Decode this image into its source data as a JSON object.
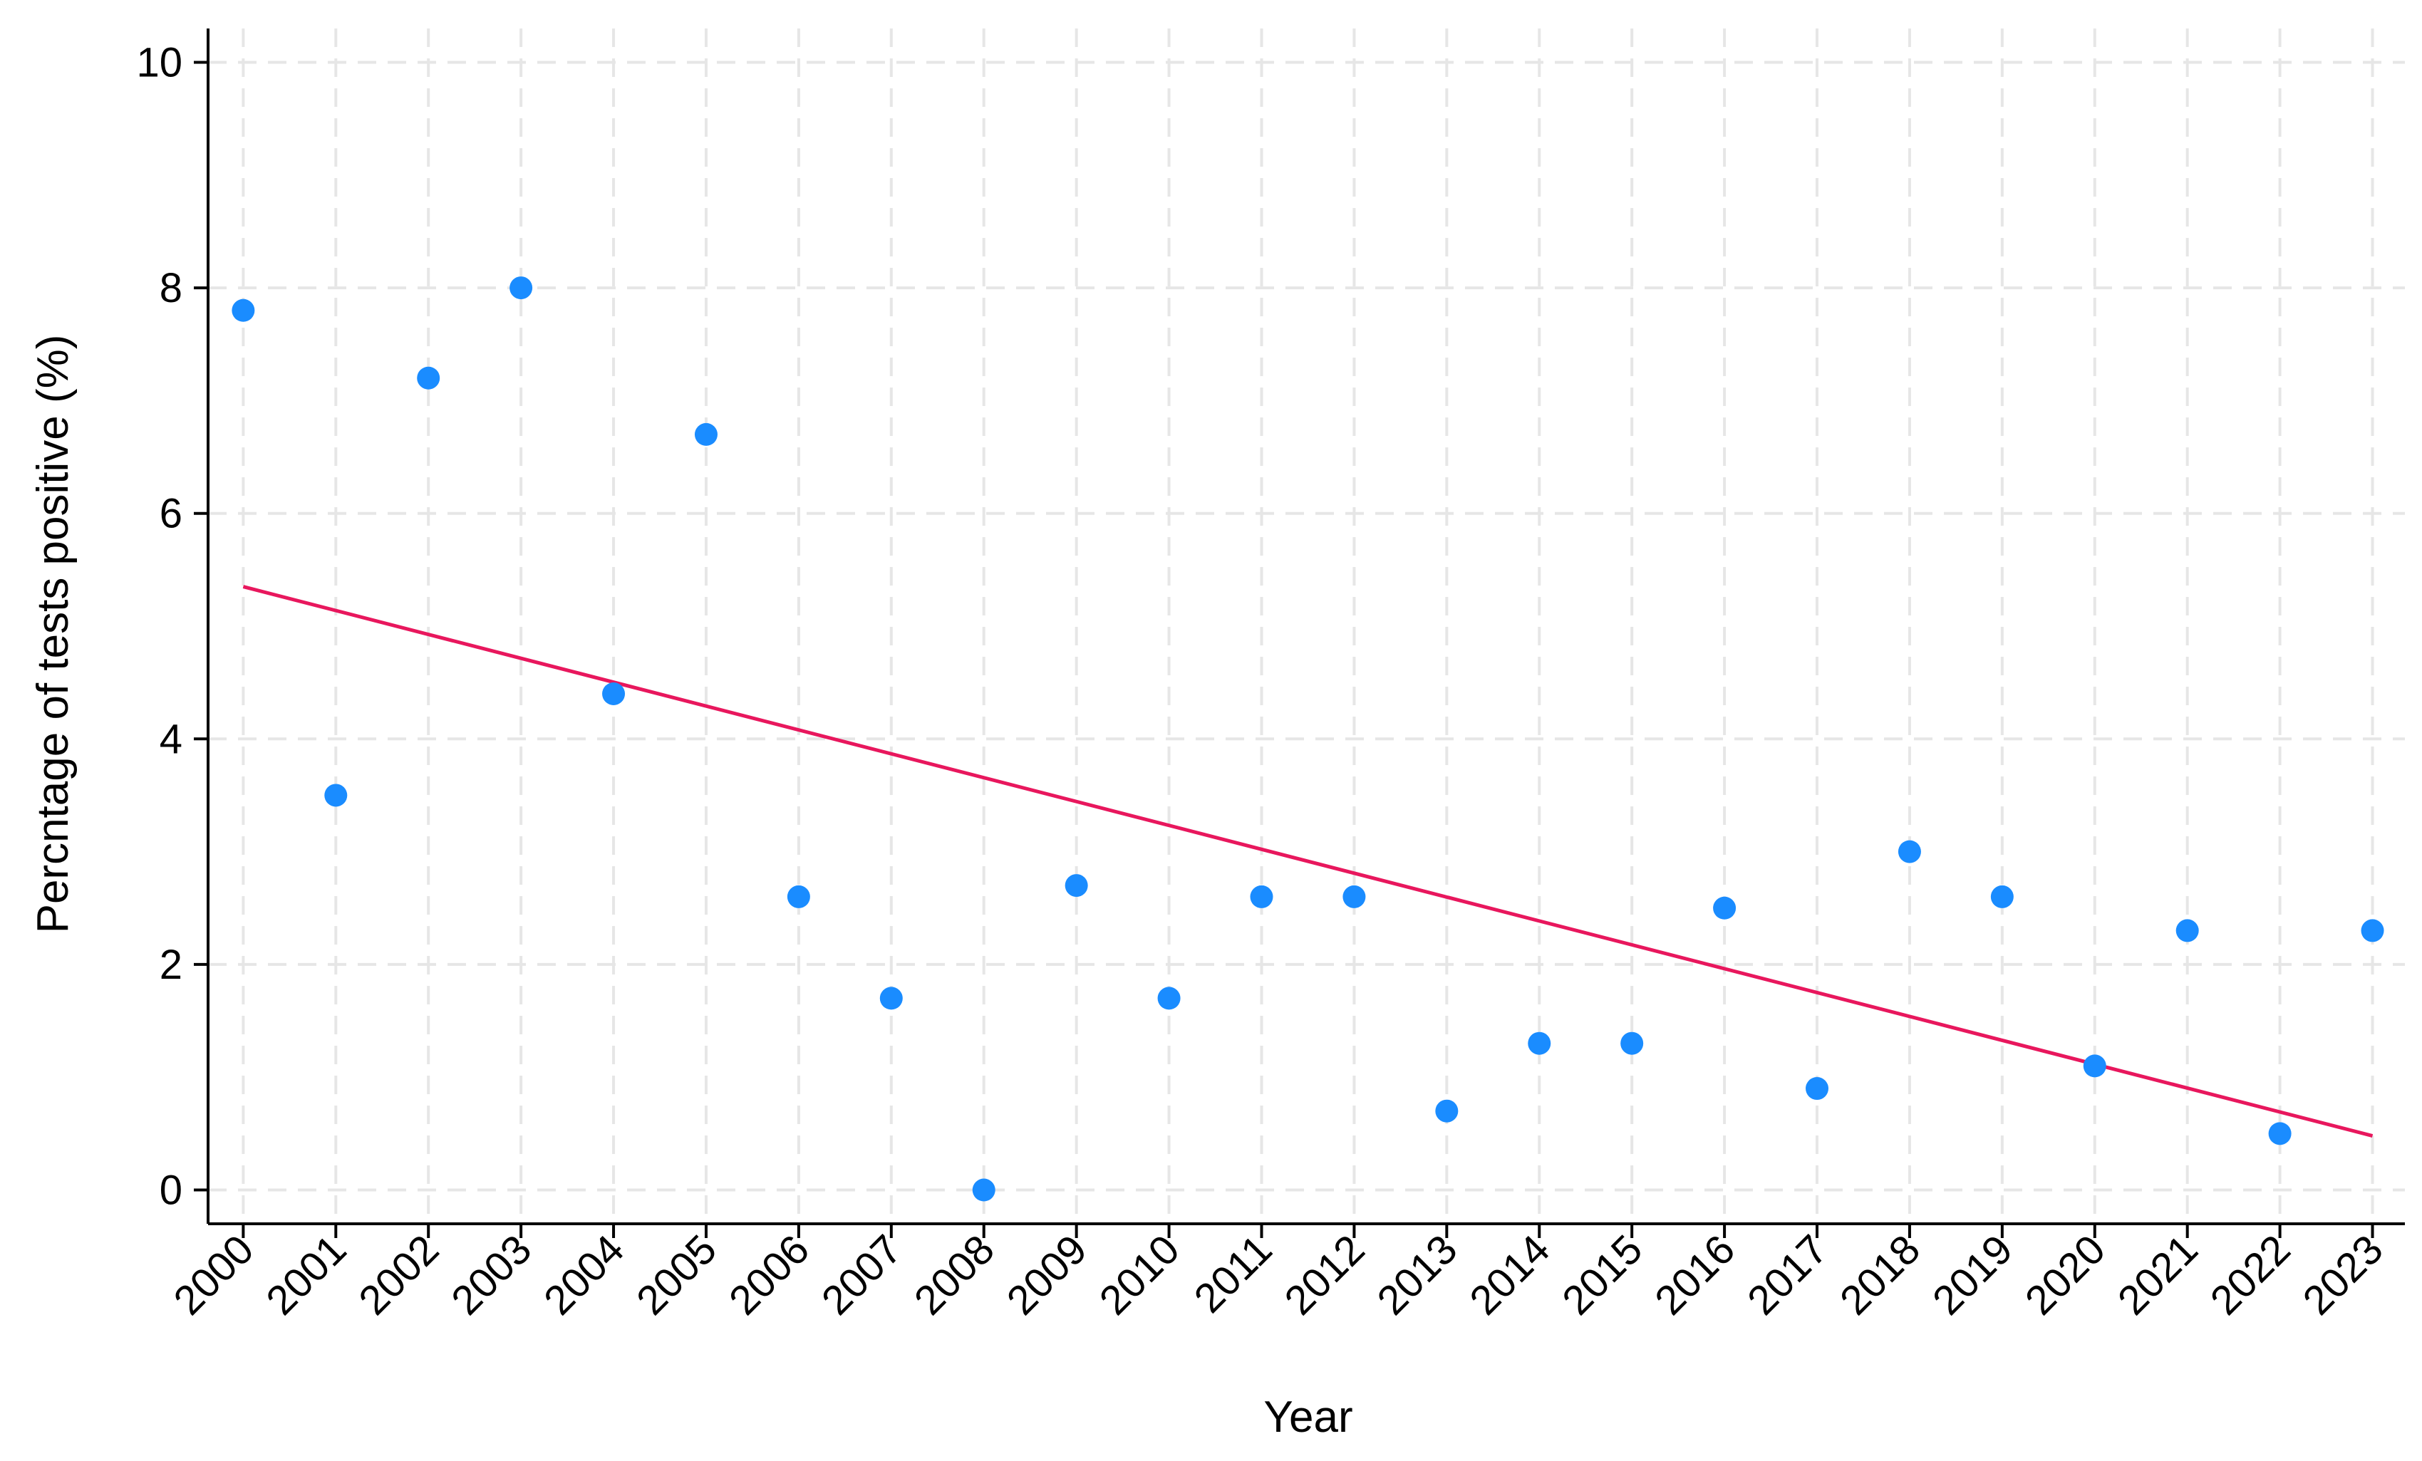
{
  "chart_data": {
    "type": "scatter",
    "title": "",
    "xlabel": "Year",
    "ylabel": "Percntage of tests positive (%)",
    "x": [
      2000,
      2001,
      2002,
      2003,
      2004,
      2005,
      2006,
      2007,
      2008,
      2009,
      2010,
      2011,
      2012,
      2013,
      2014,
      2015,
      2016,
      2017,
      2018,
      2019,
      2020,
      2021,
      2022,
      2023
    ],
    "x_tick_labels": [
      "2000",
      "2001",
      "2002",
      "2003",
      "2004",
      "2005",
      "2006",
      "2007",
      "2008",
      "2009",
      "2010",
      "2011",
      "2012",
      "2013",
      "2014",
      "2015",
      "2016",
      "2017",
      "2018",
      "2019",
      "2020",
      "2021",
      "2022",
      "2023"
    ],
    "y_ticks": [
      0,
      2,
      4,
      6,
      8,
      10
    ],
    "y_tick_labels": [
      "0",
      "2",
      "4",
      "6",
      "8",
      "10"
    ],
    "xlim": [
      1999.62,
      2023.35
    ],
    "ylim": [
      -0.3,
      10.3
    ],
    "grid": true,
    "series": [
      {
        "kind": "points",
        "color": "#1a8cff",
        "y": [
          7.8,
          3.5,
          7.2,
          8.0,
          4.4,
          6.7,
          2.6,
          1.7,
          0.0,
          2.7,
          1.7,
          2.6,
          2.6,
          0.7,
          1.3,
          1.3,
          2.5,
          0.9,
          3.0,
          2.6,
          1.1,
          2.3,
          0.5,
          2.3
        ]
      },
      {
        "kind": "trend-line",
        "color": "#e8175d",
        "x": [
          2000,
          2023
        ],
        "y": [
          5.35,
          0.48
        ]
      }
    ]
  }
}
